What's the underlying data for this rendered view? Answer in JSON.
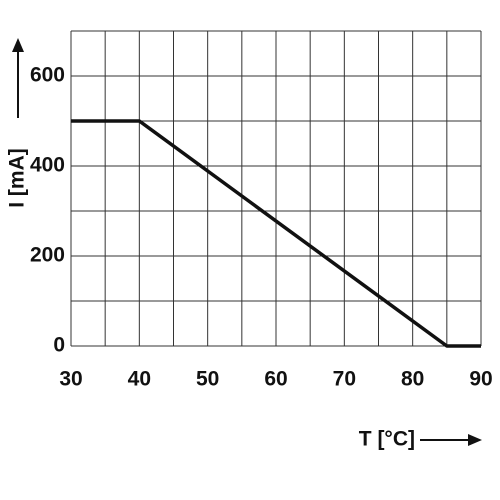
{
  "chart_data": {
    "type": "line",
    "x_label": "T [°C]",
    "y_label": "I [mA]",
    "x": [
      30,
      40,
      85,
      90
    ],
    "series": [
      {
        "color": "#111111",
        "values": [
          500,
          500,
          0,
          0
        ]
      }
    ],
    "xlim": [
      30,
      90
    ],
    "xticks": [
      30,
      40,
      50,
      60,
      70,
      80,
      90
    ],
    "xminor": [
      35,
      45,
      55,
      65,
      75,
      85
    ],
    "ylim": [
      0,
      700
    ],
    "yticks": [
      0,
      200,
      400,
      600
    ],
    "yminor": [
      100,
      300,
      500,
      700
    ],
    "grid": true
  }
}
